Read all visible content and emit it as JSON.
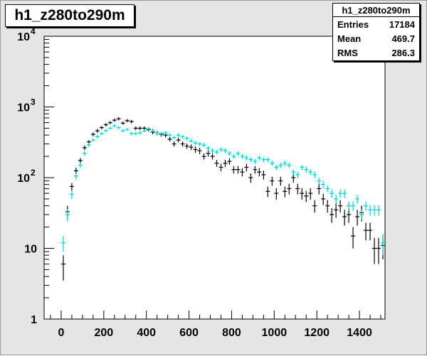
{
  "chart_data": {
    "type": "scatter",
    "title": "h1_z280to290m",
    "stats": {
      "name": "h1_z280to290m",
      "rows": [
        {
          "label": "Entries",
          "value": "17184"
        },
        {
          "label": "Mean",
          "value": "469.7"
        },
        {
          "label": "RMS",
          "value": "286.3"
        }
      ]
    },
    "xlim": [
      -80,
      1520
    ],
    "ylim": [
      1,
      10000
    ],
    "y_scale": "log",
    "x_ticks": [
      0,
      200,
      400,
      600,
      800,
      1000,
      1200,
      1400
    ],
    "x_tick_labels": [
      "0",
      "200",
      "400",
      "600",
      "800",
      "1000",
      "1200",
      "1400"
    ],
    "y_ticks": [
      {
        "value": 1,
        "label": "1"
      },
      {
        "value": 10,
        "label": "10"
      },
      {
        "value": 100,
        "label": "10",
        "exp": "2"
      },
      {
        "value": 1000,
        "label": "10",
        "exp": "3"
      },
      {
        "value": 10000,
        "label": "10",
        "exp": "4"
      }
    ],
    "bin_width": 20,
    "series": [
      {
        "color": "#000000",
        "x": [
          10,
          30,
          50,
          70,
          90,
          110,
          130,
          150,
          170,
          190,
          210,
          230,
          250,
          270,
          290,
          310,
          330,
          350,
          370,
          390,
          410,
          430,
          450,
          470,
          490,
          510,
          530,
          550,
          570,
          590,
          610,
          630,
          650,
          670,
          690,
          710,
          730,
          750,
          770,
          790,
          810,
          830,
          850,
          870,
          890,
          910,
          930,
          950,
          970,
          990,
          1010,
          1030,
          1050,
          1070,
          1090,
          1110,
          1130,
          1150,
          1170,
          1190,
          1210,
          1230,
          1250,
          1270,
          1290,
          1310,
          1330,
          1350,
          1370,
          1390,
          1410,
          1430,
          1450,
          1470,
          1490,
          1510
        ],
        "y": [
          6,
          33,
          75,
          125,
          175,
          265,
          320,
          410,
          460,
          510,
          560,
          600,
          650,
          680,
          590,
          640,
          620,
          500,
          500,
          500,
          480,
          440,
          430,
          410,
          400,
          350,
          300,
          340,
          300,
          280,
          270,
          250,
          240,
          200,
          220,
          200,
          160,
          140,
          160,
          170,
          130,
          130,
          120,
          140,
          100,
          130,
          120,
          110,
          64,
          90,
          60,
          90,
          64,
          70,
          100,
          70,
          60,
          55,
          60,
          40,
          70,
          50,
          40,
          30,
          35,
          40,
          28,
          30,
          15,
          28,
          32,
          18,
          18,
          10,
          10,
          11
        ],
        "ylo": [
          3.5,
          26,
          66,
          112,
          160,
          245,
          300,
          385,
          430,
          480,
          530,
          570,
          615,
          645,
          560,
          605,
          585,
          470,
          470,
          470,
          450,
          410,
          400,
          380,
          370,
          325,
          275,
          315,
          275,
          255,
          245,
          225,
          215,
          180,
          198,
          180,
          142,
          123,
          142,
          152,
          114,
          114,
          104,
          123,
          85,
          114,
          104,
          94,
          53,
          77,
          49,
          77,
          53,
          58,
          85,
          58,
          49,
          45,
          49,
          32,
          58,
          41,
          32,
          23,
          27,
          32,
          21,
          23,
          10,
          21,
          24,
          13,
          13,
          6,
          6,
          7
        ],
        "yhi": [
          8,
          40,
          84,
          138,
          190,
          285,
          340,
          435,
          490,
          540,
          590,
          630,
          685,
          715,
          620,
          675,
          655,
          530,
          530,
          530,
          510,
          470,
          460,
          440,
          430,
          375,
          325,
          365,
          325,
          305,
          295,
          275,
          265,
          220,
          242,
          220,
          178,
          157,
          178,
          188,
          146,
          146,
          136,
          157,
          115,
          146,
          136,
          126,
          75,
          103,
          71,
          103,
          75,
          82,
          115,
          82,
          71,
          65,
          71,
          48,
          82,
          59,
          48,
          37,
          43,
          48,
          35,
          37,
          20,
          35,
          40,
          23,
          23,
          14,
          14,
          15
        ]
      },
      {
        "color": "#00d2d2",
        "x": [
          10,
          30,
          50,
          70,
          90,
          110,
          130,
          150,
          170,
          190,
          210,
          230,
          250,
          270,
          290,
          310,
          330,
          350,
          370,
          390,
          410,
          430,
          450,
          470,
          490,
          510,
          530,
          550,
          570,
          590,
          610,
          630,
          650,
          670,
          690,
          710,
          730,
          750,
          770,
          790,
          810,
          830,
          850,
          870,
          890,
          910,
          930,
          950,
          970,
          990,
          1010,
          1030,
          1050,
          1070,
          1090,
          1110,
          1130,
          1150,
          1170,
          1190,
          1210,
          1230,
          1250,
          1270,
          1290,
          1310,
          1330,
          1350,
          1370,
          1390,
          1410,
          1430,
          1450,
          1470,
          1490,
          1510
        ],
        "y": [
          12,
          30,
          58,
          105,
          150,
          220,
          290,
          340,
          380,
          420,
          460,
          500,
          540,
          510,
          460,
          480,
          420,
          420,
          430,
          460,
          490,
          470,
          430,
          420,
          430,
          400,
          370,
          400,
          380,
          360,
          330,
          310,
          300,
          290,
          260,
          240,
          230,
          250,
          240,
          220,
          200,
          220,
          200,
          190,
          180,
          170,
          190,
          180,
          180,
          160,
          140,
          150,
          160,
          150,
          120,
          110,
          140,
          130,
          120,
          110,
          90,
          80,
          70,
          60,
          50,
          60,
          60,
          40,
          40,
          50,
          30,
          40,
          35,
          35,
          35,
          12
        ],
        "ylo": [
          9,
          24,
          50,
          94,
          137,
          203,
          271,
          320,
          358,
          398,
          436,
          475,
          514,
          485,
          436,
          455,
          397,
          397,
          407,
          436,
          465,
          446,
          407,
          397,
          407,
          378,
          349,
          378,
          358,
          339,
          310,
          290,
          281,
          271,
          242,
          223,
          213,
          232,
          223,
          204,
          185,
          204,
          185,
          175,
          166,
          157,
          175,
          166,
          166,
          147,
          128,
          138,
          147,
          138,
          109,
          99,
          128,
          118,
          109,
          99,
          80,
          71,
          62,
          52,
          43,
          52,
          52,
          34,
          34,
          43,
          25,
          34,
          29,
          29,
          29,
          8
        ],
        "yhi": [
          15,
          36,
          66,
          116,
          163,
          237,
          309,
          360,
          402,
          442,
          484,
          525,
          566,
          535,
          484,
          505,
          443,
          443,
          453,
          484,
          515,
          494,
          453,
          443,
          453,
          422,
          391,
          422,
          402,
          381,
          350,
          330,
          319,
          309,
          278,
          257,
          247,
          268,
          257,
          236,
          215,
          236,
          215,
          205,
          194,
          183,
          205,
          194,
          194,
          173,
          152,
          162,
          173,
          162,
          131,
          121,
          152,
          142,
          131,
          121,
          100,
          89,
          78,
          68,
          57,
          68,
          68,
          46,
          46,
          57,
          35,
          46,
          41,
          41,
          41,
          16
        ]
      }
    ]
  }
}
